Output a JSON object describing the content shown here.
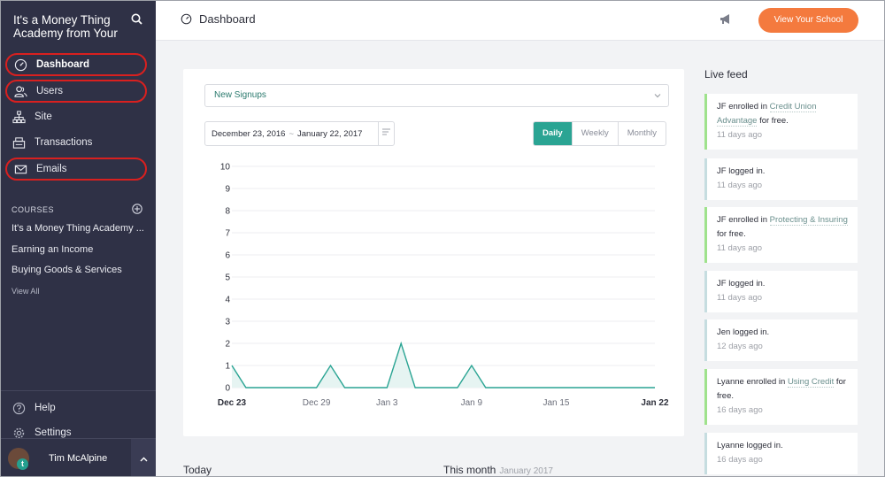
{
  "sidebar": {
    "brand": "It's a Money Thing Academy from Your",
    "nav": [
      {
        "label": "Dashboard",
        "icon": "speedometer-icon"
      },
      {
        "label": "Users",
        "icon": "users-icon"
      },
      {
        "label": "Site",
        "icon": "sitemap-icon"
      },
      {
        "label": "Transactions",
        "icon": "register-icon"
      },
      {
        "label": "Emails",
        "icon": "envelope-icon"
      }
    ],
    "courses_heading": "COURSES",
    "courses": [
      "It's a Money Thing Academy ...",
      "Earning an Income",
      "Buying Goods & Services"
    ],
    "view_all": "View All",
    "help": "Help",
    "settings": "Settings",
    "user_name": "Tim McAlpine",
    "avatar_letter": "t"
  },
  "header": {
    "title": "Dashboard",
    "cta": "View Your School"
  },
  "filters": {
    "metric": "New Signups",
    "date_from": "December 23, 2016",
    "date_to": "January 22, 2017",
    "date_separator": "~",
    "periods": [
      "Daily",
      "Weekly",
      "Monthly"
    ],
    "active_period": "Daily"
  },
  "chart_data": {
    "type": "area",
    "title": "",
    "xlabel": "",
    "ylabel": "",
    "ylim": [
      0,
      10
    ],
    "y_ticks": [
      0,
      1,
      2,
      3,
      4,
      5,
      6,
      7,
      8,
      9,
      10
    ],
    "x_tick_labels": [
      "Dec 23",
      "Dec 29",
      "Jan 3",
      "Jan 9",
      "Jan 15",
      "Jan 22"
    ],
    "x_tick_dates": [
      "Dec 23",
      "Dec 29",
      "Jan 3",
      "Jan 9",
      "Jan 15",
      "Jan 22"
    ],
    "x": [
      "Dec 23",
      "Dec 24",
      "Dec 25",
      "Dec 26",
      "Dec 27",
      "Dec 28",
      "Dec 29",
      "Dec 30",
      "Dec 31",
      "Jan 1",
      "Jan 2",
      "Jan 3",
      "Jan 4",
      "Jan 5",
      "Jan 6",
      "Jan 7",
      "Jan 8",
      "Jan 9",
      "Jan 10",
      "Jan 11",
      "Jan 12",
      "Jan 13",
      "Jan 14",
      "Jan 15",
      "Jan 16",
      "Jan 17",
      "Jan 18",
      "Jan 19",
      "Jan 20",
      "Jan 21",
      "Jan 22"
    ],
    "series": [
      {
        "values": [
          1,
          0,
          0,
          0,
          0,
          0,
          0,
          1,
          0,
          0,
          0,
          0,
          2,
          0,
          0,
          0,
          0,
          1,
          0,
          0,
          0,
          0,
          0,
          0,
          0,
          0,
          0,
          0,
          0,
          0,
          0
        ]
      }
    ],
    "color": "#2aa493",
    "fill": "#e6f4f2",
    "grid": true
  },
  "bottom": {
    "today": "Today",
    "this_month": "This month",
    "this_month_sub": "January 2017"
  },
  "feed": {
    "title": "Live feed",
    "items": [
      {
        "type": "enroll",
        "pre": "JF enrolled in ",
        "course": "Credit Union Advantage",
        "post": " for free.",
        "time": "11 days ago"
      },
      {
        "type": "login",
        "pre": "JF logged in.",
        "course": "",
        "post": "",
        "time": "11 days ago"
      },
      {
        "type": "enroll",
        "pre": "JF enrolled in ",
        "course": "Protecting & Insuring",
        "post": " for free.",
        "time": "11 days ago"
      },
      {
        "type": "login",
        "pre": "JF logged in.",
        "course": "",
        "post": "",
        "time": "11 days ago"
      },
      {
        "type": "login",
        "pre": "Jen logged in.",
        "course": "",
        "post": "",
        "time": "12 days ago"
      },
      {
        "type": "enroll",
        "pre": "Lyanne enrolled in ",
        "course": "Using Credit",
        "post": " for free.",
        "time": "16 days ago"
      },
      {
        "type": "login",
        "pre": "Lyanne logged in.",
        "course": "",
        "post": "",
        "time": "16 days ago"
      }
    ]
  }
}
